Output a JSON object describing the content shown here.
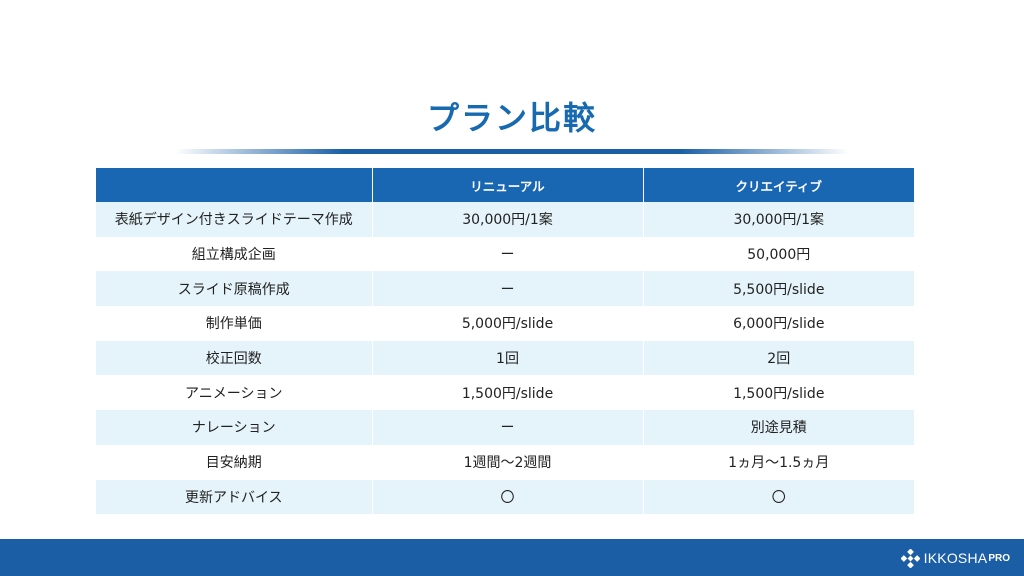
{
  "title": "プラン比較",
  "table": {
    "headers": [
      "",
      "リニューアル",
      "クリエイティブ"
    ],
    "rows": [
      {
        "label": "表紙デザイン付きスライドテーマ作成",
        "renewal": "30,000円/1案",
        "creative": "30,000円/1案"
      },
      {
        "label": "組立構成企画",
        "renewal": "ー",
        "creative": "50,000円"
      },
      {
        "label": "スライド原稿作成",
        "renewal": "ー",
        "creative": "5,500円/slide"
      },
      {
        "label": "制作単価",
        "renewal": "5,000円/slide",
        "creative": "6,000円/slide"
      },
      {
        "label": "校正回数",
        "renewal": "1回",
        "creative": "2回"
      },
      {
        "label": "アニメーション",
        "renewal": "1,500円/slide",
        "creative": "1,500円/slide"
      },
      {
        "label": "ナレーション",
        "renewal": "ー",
        "creative": "別途見積"
      },
      {
        "label": "目安納期",
        "renewal": "1週間〜2週間",
        "creative": "1ヵ月〜1.5ヵ月"
      },
      {
        "label": "更新アドバイス",
        "renewal": "〇",
        "creative": "〇"
      }
    ]
  },
  "footer": {
    "brand": "IKKOSHA",
    "brand_suffix": "PRO",
    "accent_color": "#1b5ea6"
  }
}
